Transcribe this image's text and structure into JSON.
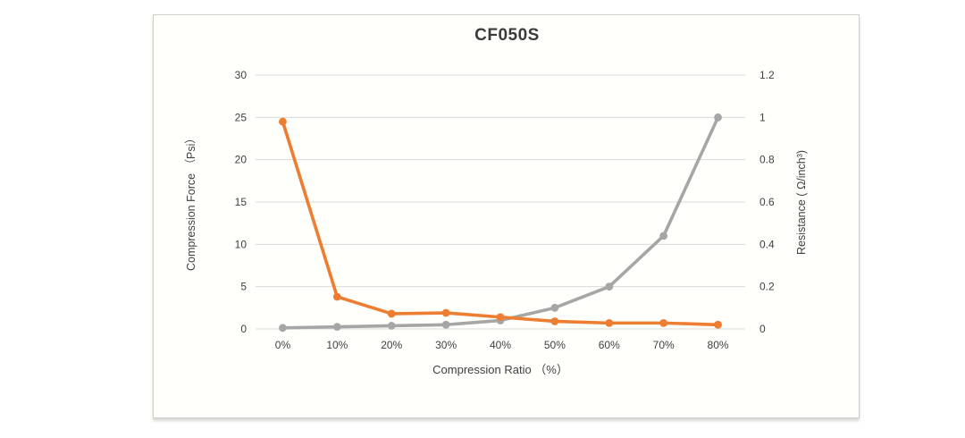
{
  "page": {
    "background": "#ffffff",
    "panel_background": "#fffffc",
    "panel_border": "#cfcfc9"
  },
  "chart_data": {
    "type": "line",
    "title": "CF050S",
    "categories": [
      "0%",
      "10%",
      "20%",
      "30%",
      "40%",
      "50%",
      "60%",
      "70%",
      "80%"
    ],
    "x_axis_label": "Compression Ratio （%）",
    "left_axis": {
      "label": "Compression Force （Psi）",
      "tick_labels": [
        "0",
        "5",
        "10",
        "15",
        "20",
        "25",
        "30"
      ],
      "range": [
        0,
        30
      ]
    },
    "right_axis": {
      "label": "Resistance ( Ω/inch³)",
      "tick_labels": [
        "0",
        "0.2",
        "0.4",
        "0.6",
        "0.8",
        "1",
        "1.2"
      ],
      "range": [
        0,
        1.2
      ]
    },
    "series": [
      {
        "name": "Resistance ( Ω/inch³)",
        "axis": "right",
        "color": "#A6A6A6",
        "values": [
          0.005,
          0.01,
          0.015,
          0.02,
          0.04,
          0.1,
          0.2,
          0.44,
          1.0
        ]
      },
      {
        "name": "Compression Force （Psi）",
        "axis": "left",
        "color": "#ED7D31",
        "values": [
          24.5,
          3.8,
          1.8,
          1.9,
          1.4,
          0.9,
          0.7,
          0.7,
          0.5
        ]
      }
    ],
    "grid": true,
    "gridline_color": "#D9D9D9",
    "legend": false
  }
}
